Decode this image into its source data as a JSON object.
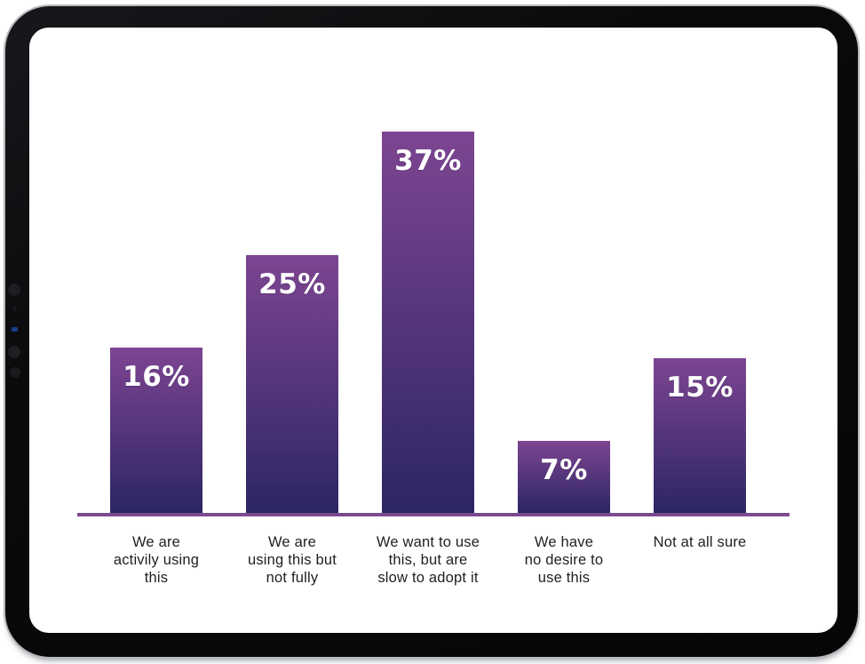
{
  "device": {
    "frame_color": "#0a0a0b",
    "rim_color": "#b7babd",
    "screen_background": "#ffffff"
  },
  "chart_data": {
    "type": "bar",
    "title": "",
    "xlabel": "",
    "ylabel": "",
    "categories": [
      "We are\nactivily using\nthis",
      "We are\nusing this but\nnot fully",
      "We want to use\nthis, but are\nslow to adopt it",
      "We have\nno desire to\nuse this",
      "Not at all sure"
    ],
    "values": [
      16,
      25,
      37,
      7,
      15
    ],
    "value_labels": [
      "16%",
      "25%",
      "37%",
      "7%",
      "15%"
    ],
    "ylim": [
      0,
      40
    ],
    "grid": false,
    "legend": null,
    "bar_gradient_top": "#7d4591",
    "bar_gradient_bottom": "#2c2663",
    "axis_line_color": "#7c4a8e",
    "value_label_color": "#ffffff",
    "category_label_color": "#1f1f1f"
  }
}
